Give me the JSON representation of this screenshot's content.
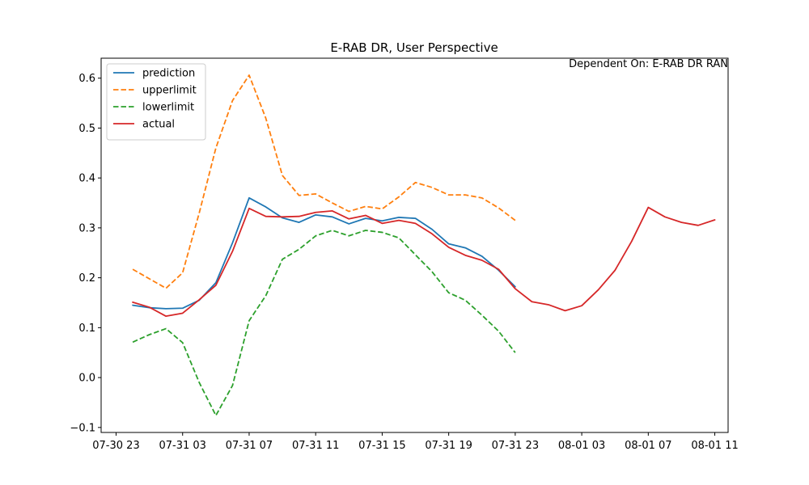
{
  "chart_data": {
    "type": "line",
    "title": "E-RAB DR, User Perspective",
    "annotation": "Dependent On: E-RAB DR RAN",
    "xlabel": "",
    "ylabel": "",
    "ylim": [
      -0.11,
      0.64
    ],
    "xlim_hours": [
      -0.9,
      36.8
    ],
    "x_reference": "07-30 23",
    "x_ticks": [
      {
        "label": "07-30 23",
        "hours": 0
      },
      {
        "label": "07-31 03",
        "hours": 4
      },
      {
        "label": "07-31 07",
        "hours": 8
      },
      {
        "label": "07-31 11",
        "hours": 12
      },
      {
        "label": "07-31 15",
        "hours": 16
      },
      {
        "label": "07-31 19",
        "hours": 20
      },
      {
        "label": "07-31 23",
        "hours": 24
      },
      {
        "label": "08-01 03",
        "hours": 28
      },
      {
        "label": "08-01 07",
        "hours": 32
      },
      {
        "label": "08-01 11",
        "hours": 36
      }
    ],
    "y_ticks": [
      -0.1,
      0.0,
      0.1,
      0.2,
      0.3,
      0.4,
      0.5,
      0.6
    ],
    "y_tick_labels": [
      "−0.1",
      "0.0",
      "0.1",
      "0.2",
      "0.3",
      "0.4",
      "0.5",
      "0.6"
    ],
    "legend_position": "top-left",
    "grid": false,
    "series": [
      {
        "name": "prediction",
        "color": "#1f77b4",
        "dash": "solid",
        "start_hour": 1,
        "values": [
          0.145,
          0.14,
          0.138,
          0.139,
          0.155,
          0.19,
          0.27,
          0.36,
          0.342,
          0.32,
          0.311,
          0.326,
          0.322,
          0.308,
          0.319,
          0.314,
          0.321,
          0.319,
          0.297,
          0.268,
          0.26,
          0.243,
          0.215,
          0.182
        ]
      },
      {
        "name": "upperlimit",
        "color": "#ff7f0e",
        "dash": "dashed",
        "start_hour": 1,
        "values": [
          0.217,
          0.198,
          0.179,
          0.21,
          0.33,
          0.46,
          0.555,
          0.606,
          0.52,
          0.405,
          0.365,
          0.368,
          0.35,
          0.333,
          0.343,
          0.338,
          0.362,
          0.391,
          0.381,
          0.366,
          0.366,
          0.36,
          0.34,
          0.315
        ]
      },
      {
        "name": "lowerlimit",
        "color": "#2ca02c",
        "dash": "dashed",
        "start_hour": 1,
        "values": [
          0.071,
          0.086,
          0.098,
          0.07,
          -0.01,
          -0.076,
          -0.016,
          0.114,
          0.164,
          0.237,
          0.257,
          0.284,
          0.295,
          0.284,
          0.295,
          0.291,
          0.28,
          0.246,
          0.212,
          0.17,
          0.155,
          0.125,
          0.093,
          0.05
        ]
      },
      {
        "name": "actual",
        "color": "#d62728",
        "dash": "solid",
        "start_hour": 1,
        "values": [
          0.151,
          0.141,
          0.123,
          0.129,
          0.156,
          0.185,
          0.253,
          0.339,
          0.323,
          0.322,
          0.323,
          0.331,
          0.334,
          0.318,
          0.325,
          0.309,
          0.315,
          0.309,
          0.288,
          0.261,
          0.245,
          0.235,
          0.217,
          0.178,
          0.152,
          0.146,
          0.134,
          0.144,
          0.176,
          0.215,
          0.273,
          0.341,
          0.322,
          0.311,
          0.305,
          0.316
        ]
      }
    ]
  }
}
